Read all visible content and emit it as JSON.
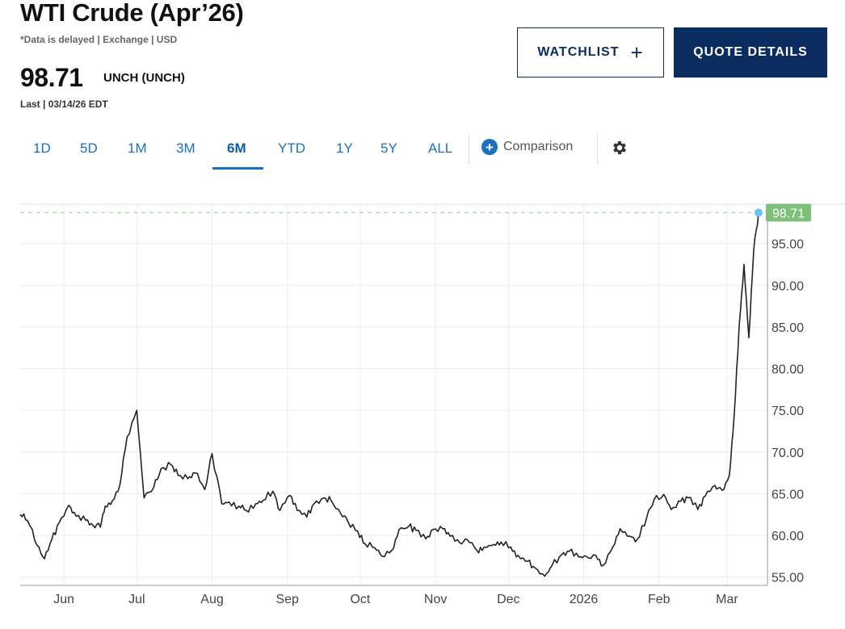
{
  "header": {
    "title": "WTI Crude (Apr’26)",
    "disclaimer": "*Data is delayed | Exchange | USD",
    "price": "98.71",
    "change": "UNCH (UNCH)",
    "last": "Last | 03/14/26 EDT"
  },
  "buttons": {
    "watchlist": "WATCHLIST",
    "quote_details": "QUOTE DETAILS"
  },
  "tabs": [
    {
      "label": "1D"
    },
    {
      "label": "5D"
    },
    {
      "label": "1M"
    },
    {
      "label": "3M"
    },
    {
      "label": "6M",
      "active": true
    },
    {
      "label": "YTD"
    },
    {
      "label": "1Y"
    },
    {
      "label": "5Y"
    },
    {
      "label": "ALL"
    }
  ],
  "comparison": "Comparison",
  "icons": [
    "plus-icon",
    "plus-circle-icon",
    "gear-icon"
  ],
  "colors": {
    "navy": "#0b2c5f",
    "link_blue": "#1a6fc1",
    "line": "#222222",
    "last_badge": "#7ec07a",
    "last_dot": "#6cc3ee"
  },
  "chart_data": {
    "type": "line",
    "x_ticks": [
      "Jun",
      "Jul",
      "Aug",
      "Sep",
      "Oct",
      "Nov",
      "Dec",
      "2026",
      "Feb",
      "Mar"
    ],
    "y_ticks": [
      "55.00",
      "60.00",
      "65.00",
      "70.00",
      "75.00",
      "80.00",
      "85.00",
      "90.00",
      "95.00"
    ],
    "ylim": [
      54,
      100
    ],
    "last_value": "98.71",
    "grid": true,
    "series": [
      {
        "x": [
          "2025-05-14",
          "2025-05-17",
          "2025-05-21",
          "2025-05-24",
          "2025-05-27",
          "2025-05-30",
          "2025-06-03",
          "2025-06-06",
          "2025-06-10",
          "2025-06-13",
          "2025-06-16",
          "2025-06-18",
          "2025-06-21",
          "2025-06-24",
          "2025-06-27",
          "2025-07-01",
          "2025-07-04",
          "2025-07-08",
          "2025-07-11",
          "2025-07-15",
          "2025-07-18",
          "2025-07-22",
          "2025-07-25",
          "2025-07-29",
          "2025-08-01",
          "2025-08-05",
          "2025-08-08",
          "2025-08-12",
          "2025-08-15",
          "2025-08-19",
          "2025-08-22",
          "2025-08-26",
          "2025-08-29",
          "2025-09-02",
          "2025-09-05",
          "2025-09-09",
          "2025-09-12",
          "2025-09-16",
          "2025-09-19",
          "2025-09-23",
          "2025-09-26",
          "2025-09-30",
          "2025-10-03",
          "2025-10-07",
          "2025-10-10",
          "2025-10-14",
          "2025-10-17",
          "2025-10-21",
          "2025-10-24",
          "2025-10-28",
          "2025-10-31",
          "2025-11-04",
          "2025-11-07",
          "2025-11-11",
          "2025-11-14",
          "2025-11-18",
          "2025-11-21",
          "2025-11-25",
          "2025-11-28",
          "2025-12-02",
          "2025-12-05",
          "2025-12-09",
          "2025-12-12",
          "2025-12-16",
          "2025-12-19",
          "2025-12-23",
          "2025-12-26",
          "2025-12-30",
          "2026-01-02",
          "2026-01-06",
          "2026-01-09",
          "2026-01-13",
          "2026-01-16",
          "2026-01-20",
          "2026-01-23",
          "2026-01-27",
          "2026-01-30",
          "2026-02-03",
          "2026-02-06",
          "2026-02-10",
          "2026-02-13",
          "2026-02-17",
          "2026-02-20",
          "2026-02-24",
          "2026-02-27",
          "2026-03-02",
          "2026-03-04",
          "2026-03-06",
          "2026-03-08",
          "2026-03-10",
          "2026-03-12",
          "2026-03-14"
        ],
        "y": [
          62.5,
          61.8,
          58.8,
          57.2,
          59.5,
          61.5,
          63.6,
          62.3,
          61.8,
          61.2,
          61.0,
          63.5,
          64.2,
          66.0,
          71.8,
          75.0,
          64.5,
          65.8,
          68.0,
          68.5,
          67.2,
          66.8,
          67.5,
          65.5,
          69.8,
          63.8,
          64.0,
          63.5,
          63.0,
          63.8,
          64.2,
          65.3,
          63.0,
          64.8,
          63.0,
          62.2,
          63.8,
          64.5,
          64.2,
          62.6,
          61.6,
          60.5,
          59.0,
          58.5,
          57.5,
          58.2,
          60.7,
          61.1,
          60.6,
          59.6,
          60.7,
          60.8,
          59.9,
          59.1,
          59.5,
          58.2,
          58.6,
          58.9,
          59.2,
          58.6,
          57.6,
          56.9,
          56.1,
          55.1,
          56.4,
          57.7,
          58.1,
          57.4,
          57.5,
          57.6,
          56.4,
          58.6,
          60.8,
          59.9,
          59.5,
          62.2,
          64.3,
          64.9,
          63.1,
          64.1,
          64.5,
          63.1,
          64.7,
          66.0,
          65.4,
          67.2,
          74.5,
          85.0,
          92.5,
          83.7,
          94.2,
          98.71
        ]
      }
    ]
  }
}
